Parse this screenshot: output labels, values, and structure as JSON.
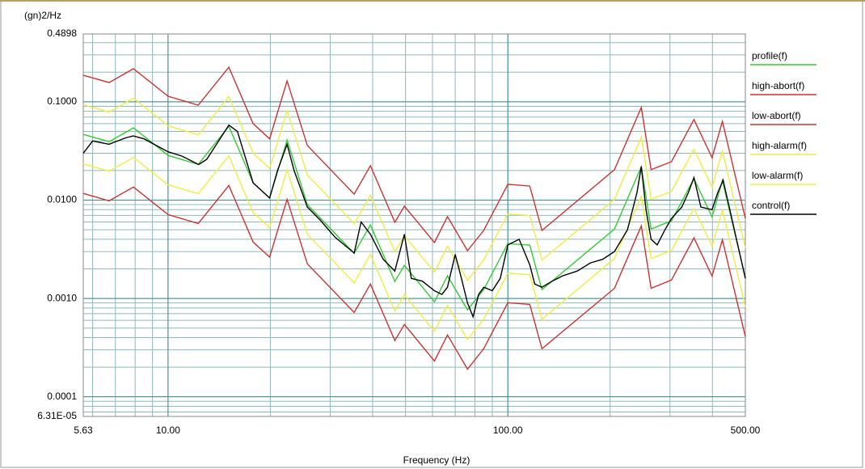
{
  "chart_data": {
    "type": "line",
    "y_label": "(gn)2/Hz",
    "x_label": "Frequency (Hz)",
    "xlog": true,
    "ylog": true,
    "grid": true,
    "legend": "right",
    "xlim": [
      5.63,
      500
    ],
    "ylim": [
      6.31e-05,
      0.4898
    ],
    "xticks": [
      5.63,
      {
        "value": 10,
        "label": "10.00"
      },
      {
        "value": 100,
        "label": "100.00"
      },
      {
        "value": 500,
        "label": "500.00"
      }
    ],
    "yticks": [
      {
        "value": 0.4898,
        "label": "0.4898"
      },
      {
        "value": 0.1,
        "label": "0.1000"
      },
      {
        "value": 0.01,
        "label": "0.0100"
      },
      {
        "value": 0.001,
        "label": "0.0010"
      },
      {
        "value": 0.0001,
        "label": "0.0001"
      },
      {
        "value": 6.31e-05,
        "label": "6.31E-05"
      }
    ],
    "x": [
      5.63,
      6.71,
      7.91,
      10,
      12.27,
      15.1,
      17.8,
      19.9,
      22.4,
      25.7,
      35.3,
      39.4,
      46.5,
      49.6,
      60.8,
      66.4,
      76.1,
      84.9,
      100,
      116,
      126,
      206,
      247,
      264,
      303,
      353,
      399,
      428,
      500
    ],
    "series": [
      {
        "name": "profile(f)",
        "color": "#33cc33",
        "values": [
          0.0466,
          0.0393,
          0.0543,
          0.0285,
          0.0231,
          0.0563,
          0.015,
          0.0105,
          0.0408,
          0.009,
          0.00288,
          0.00559,
          0.00149,
          0.00217,
          0.000925,
          0.0017,
          0.000765,
          0.00123,
          0.00362,
          0.00348,
          0.00123,
          0.00509,
          0.0219,
          0.00509,
          0.00615,
          0.0165,
          0.00675,
          0.0158,
          0.00163
        ]
      },
      {
        "name": "high-abort(f)",
        "color": "#cc3333",
        "values": [
          0.186,
          0.157,
          0.217,
          0.114,
          0.0924,
          0.225,
          0.06,
          0.042,
          0.163,
          0.036,
          0.0115,
          0.0224,
          0.00596,
          0.00868,
          0.0037,
          0.0068,
          0.00306,
          0.00492,
          0.0145,
          0.0139,
          0.00492,
          0.0204,
          0.0876,
          0.0204,
          0.0246,
          0.066,
          0.027,
          0.0632,
          0.00652
        ]
      },
      {
        "name": "low-abort(f)",
        "color": "#cc3333",
        "values": [
          0.0117,
          0.00983,
          0.0136,
          0.00713,
          0.00578,
          0.0141,
          0.00375,
          0.00263,
          0.0102,
          0.00225,
          0.00072,
          0.0014,
          0.000373,
          0.000543,
          0.000231,
          0.000425,
          0.000191,
          0.000308,
          0.000905,
          0.00087,
          0.000308,
          0.00127,
          0.00548,
          0.00127,
          0.00154,
          0.00413,
          0.00169,
          0.00395,
          0.000408
        ]
      },
      {
        "name": "high-alarm(f)",
        "color": "#eeee44",
        "values": [
          0.0932,
          0.0786,
          0.109,
          0.057,
          0.0462,
          0.113,
          0.03,
          0.021,
          0.0816,
          0.018,
          0.00576,
          0.0112,
          0.00298,
          0.00434,
          0.00185,
          0.0034,
          0.00153,
          0.00246,
          0.00724,
          0.00696,
          0.00246,
          0.0102,
          0.0438,
          0.0102,
          0.0123,
          0.033,
          0.0135,
          0.0316,
          0.00326
        ]
      },
      {
        "name": "low-alarm(f)",
        "color": "#eeee44",
        "values": [
          0.0233,
          0.0197,
          0.0272,
          0.0143,
          0.0116,
          0.0282,
          0.0075,
          0.00525,
          0.0204,
          0.0045,
          0.00144,
          0.0028,
          0.000745,
          0.00109,
          0.000463,
          0.00085,
          0.000383,
          0.000615,
          0.00181,
          0.00174,
          0.000615,
          0.00255,
          0.011,
          0.00255,
          0.00308,
          0.00825,
          0.00338,
          0.0079,
          0.000815
        ]
      },
      {
        "name": "control(f)",
        "color": "#000000",
        "x": [
          5.63,
          6.0,
          6.7,
          7.5,
          7.9,
          8.5,
          10,
          11,
          12.3,
          13,
          15.1,
          16,
          17.8,
          19.9,
          21,
          22.4,
          23.5,
          25.7,
          28,
          31,
          35.3,
          37,
          39.4,
          43,
          46.5,
          49.6,
          52,
          56,
          60.8,
          64,
          66.4,
          70,
          73,
          76.1,
          79,
          82,
          85,
          90,
          95,
          100,
          108,
          116,
          120,
          126,
          135,
          145,
          160,
          175,
          190,
          206,
          225,
          240,
          247,
          255,
          264,
          275,
          290,
          303,
          325,
          340,
          353,
          370,
          399,
          415,
          430,
          450,
          475,
          500
        ],
        "values": [
          0.03,
          0.04,
          0.037,
          0.043,
          0.045,
          0.042,
          0.031,
          0.028,
          0.023,
          0.026,
          0.058,
          0.05,
          0.015,
          0.0105,
          0.02,
          0.037,
          0.02,
          0.0085,
          0.0063,
          0.0042,
          0.0029,
          0.006,
          0.0045,
          0.0025,
          0.0019,
          0.0045,
          0.0016,
          0.0015,
          0.0012,
          0.0011,
          0.0013,
          0.0028,
          0.0016,
          0.0009,
          0.00065,
          0.0011,
          0.0013,
          0.0012,
          0.0016,
          0.0035,
          0.004,
          0.0022,
          0.0014,
          0.0013,
          0.0015,
          0.0017,
          0.0019,
          0.0023,
          0.0025,
          0.003,
          0.005,
          0.012,
          0.022,
          0.008,
          0.004,
          0.0035,
          0.005,
          0.0065,
          0.0085,
          0.012,
          0.017,
          0.0085,
          0.008,
          0.012,
          0.016,
          0.008,
          0.0035,
          0.0016
        ]
      }
    ]
  }
}
